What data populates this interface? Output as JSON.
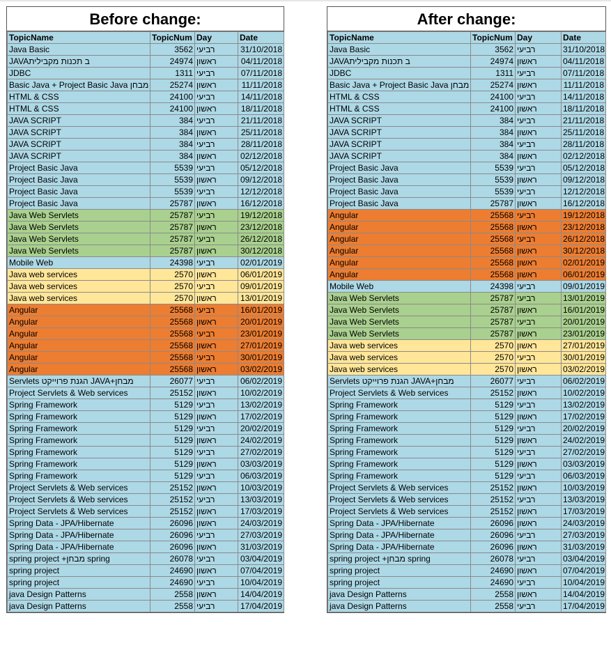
{
  "sheets": [
    {
      "id": "before",
      "title": "Before change:",
      "headers": [
        "TopicName",
        "TopicNum",
        "Day",
        "Date"
      ],
      "colors": {
        "blue": "#add8e6",
        "green": "#a9d08e",
        "yellow": "#ffe699",
        "orange": "#ed7d31"
      },
      "rows": [
        [
          "Java Basic",
          "3562",
          "רביעי",
          "31/10/2018",
          "blue"
        ],
        [
          "JAVAב תכנות מקבילית",
          "24974",
          "ראשון",
          "04/11/2018",
          "blue"
        ],
        [
          "JDBC",
          "1311",
          "רביעי",
          "07/11/2018",
          "blue"
        ],
        [
          "Basic Java + Project Basic Java מבחן",
          "25274",
          "ראשון",
          "11/11/2018",
          "blue"
        ],
        [
          "HTML & CSS",
          "24100",
          "רביעי",
          "14/11/2018",
          "blue"
        ],
        [
          "HTML & CSS",
          "24100",
          "ראשון",
          "18/11/2018",
          "blue"
        ],
        [
          "JAVA SCRIPT",
          "384",
          "רביעי",
          "21/11/2018",
          "blue"
        ],
        [
          "JAVA SCRIPT",
          "384",
          "ראשון",
          "25/11/2018",
          "blue"
        ],
        [
          "JAVA SCRIPT",
          "384",
          "רביעי",
          "28/11/2018",
          "blue"
        ],
        [
          "JAVA SCRIPT",
          "384",
          "ראשון",
          "02/12/2018",
          "blue"
        ],
        [
          "Project Basic Java",
          "5539",
          "רביעי",
          "05/12/2018",
          "blue"
        ],
        [
          "Project Basic Java",
          "5539",
          "ראשון",
          "09/12/2018",
          "blue"
        ],
        [
          "Project Basic Java",
          "5539",
          "רביעי",
          "12/12/2018",
          "blue"
        ],
        [
          "Project Basic Java",
          "25787",
          "ראשון",
          "16/12/2018",
          "blue"
        ],
        [
          "Java Web Servlets",
          "25787",
          "רביעי",
          "19/12/2018",
          "green"
        ],
        [
          "Java Web Servlets",
          "25787",
          "ראשון",
          "23/12/2018",
          "green"
        ],
        [
          "Java Web Servlets",
          "25787",
          "רביעי",
          "26/12/2018",
          "green"
        ],
        [
          "Java Web Servlets",
          "25787",
          "ראשון",
          "30/12/2018",
          "green"
        ],
        [
          "Mobile Web",
          "24398",
          "רביעי",
          "02/01/2019",
          "blue"
        ],
        [
          "Java web services",
          "2570",
          "ראשון",
          "06/01/2019",
          "yellow"
        ],
        [
          "Java web services",
          "2570",
          "רביעי",
          "09/01/2019",
          "yellow"
        ],
        [
          "Java web services",
          "2570",
          "ראשון",
          "13/01/2019",
          "yellow"
        ],
        [
          "Angular",
          "25568",
          "רביעי",
          "16/01/2019",
          "orange"
        ],
        [
          "Angular",
          "25568",
          "ראשון",
          "20/01/2019",
          "orange"
        ],
        [
          "Angular",
          "25568",
          "רביעי",
          "23/01/2019",
          "orange"
        ],
        [
          "Angular",
          "25568",
          "ראשון",
          "27/01/2019",
          "orange"
        ],
        [
          "Angular",
          "25568",
          "רביעי",
          "30/01/2019",
          "orange"
        ],
        [
          "Angular",
          "25568",
          "ראשון",
          "03/02/2019",
          "orange"
        ],
        [
          "Servlets הגנת פרוייקט JAVA+מבחן",
          "26077",
          "רביעי",
          "06/02/2019",
          "blue"
        ],
        [
          "Project Servlets & Web services",
          "25152",
          "ראשון",
          "10/02/2019",
          "blue"
        ],
        [
          "Spring Framework",
          "5129",
          "רביעי",
          "13/02/2019",
          "blue"
        ],
        [
          "Spring Framework",
          "5129",
          "ראשון",
          "17/02/2019",
          "blue"
        ],
        [
          "Spring Framework",
          "5129",
          "רביעי",
          "20/02/2019",
          "blue"
        ],
        [
          "Spring Framework",
          "5129",
          "ראשון",
          "24/02/2019",
          "blue"
        ],
        [
          "Spring Framework",
          "5129",
          "רביעי",
          "27/02/2019",
          "blue"
        ],
        [
          "Spring Framework",
          "5129",
          "ראשון",
          "03/03/2019",
          "blue"
        ],
        [
          "Spring Framework",
          "5129",
          "רביעי",
          "06/03/2019",
          "blue"
        ],
        [
          "Project Servlets & Web services",
          "25152",
          "ראשון",
          "10/03/2019",
          "blue"
        ],
        [
          "Project Servlets & Web services",
          "25152",
          "רביעי",
          "13/03/2019",
          "blue"
        ],
        [
          "Project Servlets & Web services",
          "25152",
          "ראשון",
          "17/03/2019",
          "blue"
        ],
        [
          "Spring Data - JPA/Hibernate",
          "26096",
          "ראשון",
          "24/03/2019",
          "blue"
        ],
        [
          "Spring Data - JPA/Hibernate",
          "26096",
          "רביעי",
          "27/03/2019",
          "blue"
        ],
        [
          "Spring Data - JPA/Hibernate",
          "26096",
          "ראשון",
          "31/03/2019",
          "blue"
        ],
        [
          "spring project +מבחן spring",
          "26078",
          "רביעי",
          "03/04/2019",
          "blue"
        ],
        [
          "spring project",
          "24690",
          "ראשון",
          "07/04/2019",
          "blue"
        ],
        [
          "spring project",
          "24690",
          "רביעי",
          "10/04/2019",
          "blue"
        ],
        [
          "java Design Patterns",
          "2558",
          "ראשון",
          "14/04/2019",
          "blue"
        ],
        [
          "java Design Patterns",
          "2558",
          "רביעי",
          "17/04/2019",
          "blue"
        ]
      ]
    },
    {
      "id": "after",
      "title": "After change:",
      "headers": [
        "TopicName",
        "TopicNum",
        "Day",
        "Date"
      ],
      "colors": {
        "blue": "#add8e6",
        "green": "#a9d08e",
        "yellow": "#ffe699",
        "orange": "#ed7d31"
      },
      "rows": [
        [
          "Java Basic",
          "3562",
          "רביעי",
          "31/10/2018",
          "blue"
        ],
        [
          "JAVAב תכנות מקבילית",
          "24974",
          "ראשון",
          "04/11/2018",
          "blue"
        ],
        [
          "JDBC",
          "1311",
          "רביעי",
          "07/11/2018",
          "blue"
        ],
        [
          "Basic Java + Project Basic Java מבחן",
          "25274",
          "ראשון",
          "11/11/2018",
          "blue"
        ],
        [
          "HTML & CSS",
          "24100",
          "רביעי",
          "14/11/2018",
          "blue"
        ],
        [
          "HTML & CSS",
          "24100",
          "ראשון",
          "18/11/2018",
          "blue"
        ],
        [
          "JAVA SCRIPT",
          "384",
          "רביעי",
          "21/11/2018",
          "blue"
        ],
        [
          "JAVA SCRIPT",
          "384",
          "ראשון",
          "25/11/2018",
          "blue"
        ],
        [
          "JAVA SCRIPT",
          "384",
          "רביעי",
          "28/11/2018",
          "blue"
        ],
        [
          "JAVA SCRIPT",
          "384",
          "ראשון",
          "02/12/2018",
          "blue"
        ],
        [
          "Project Basic Java",
          "5539",
          "רביעי",
          "05/12/2018",
          "blue"
        ],
        [
          "Project Basic Java",
          "5539",
          "ראשון",
          "09/12/2018",
          "blue"
        ],
        [
          "Project Basic Java",
          "5539",
          "רביעי",
          "12/12/2018",
          "blue"
        ],
        [
          "Project Basic Java",
          "25787",
          "ראשון",
          "16/12/2018",
          "blue"
        ],
        [
          "Angular",
          "25568",
          "רביעי",
          "19/12/2018",
          "orange"
        ],
        [
          "Angular",
          "25568",
          "ראשון",
          "23/12/2018",
          "orange"
        ],
        [
          "Angular",
          "25568",
          "רביעי",
          "26/12/2018",
          "orange"
        ],
        [
          "Angular",
          "25568",
          "ראשון",
          "30/12/2018",
          "orange"
        ],
        [
          "Angular",
          "25568",
          "ראשון",
          "02/01/2019",
          "orange"
        ],
        [
          "Angular",
          "25568",
          "ראשון",
          "06/01/2019",
          "orange"
        ],
        [
          "Mobile Web",
          "24398",
          "רביעי",
          "09/01/2019",
          "blue"
        ],
        [
          "Java Web Servlets",
          "25787",
          "רביעי",
          "13/01/2019",
          "green"
        ],
        [
          "Java Web Servlets",
          "25787",
          "ראשון",
          "16/01/2019",
          "green"
        ],
        [
          "Java Web Servlets",
          "25787",
          "רביעי",
          "20/01/2019",
          "green"
        ],
        [
          "Java Web Servlets",
          "25787",
          "ראשון",
          "23/01/2019",
          "green"
        ],
        [
          "Java web services",
          "2570",
          "ראשון",
          "27/01/2019",
          "yellow"
        ],
        [
          "Java web services",
          "2570",
          "רביעי",
          "30/01/2019",
          "yellow"
        ],
        [
          "Java web services",
          "2570",
          "ראשון",
          "03/02/2019",
          "yellow"
        ],
        [
          "Servlets הגנת פרוייקט JAVA+מבחן",
          "26077",
          "רביעי",
          "06/02/2019",
          "blue"
        ],
        [
          "Project Servlets & Web services",
          "25152",
          "ראשון",
          "10/02/2019",
          "blue"
        ],
        [
          "Spring Framework",
          "5129",
          "רביעי",
          "13/02/2019",
          "blue"
        ],
        [
          "Spring Framework",
          "5129",
          "ראשון",
          "17/02/2019",
          "blue"
        ],
        [
          "Spring Framework",
          "5129",
          "רביעי",
          "20/02/2019",
          "blue"
        ],
        [
          "Spring Framework",
          "5129",
          "ראשון",
          "24/02/2019",
          "blue"
        ],
        [
          "Spring Framework",
          "5129",
          "רביעי",
          "27/02/2019",
          "blue"
        ],
        [
          "Spring Framework",
          "5129",
          "ראשון",
          "03/03/2019",
          "blue"
        ],
        [
          "Spring Framework",
          "5129",
          "רביעי",
          "06/03/2019",
          "blue"
        ],
        [
          "Project Servlets & Web services",
          "25152",
          "ראשון",
          "10/03/2019",
          "blue"
        ],
        [
          "Project Servlets & Web services",
          "25152",
          "רביעי",
          "13/03/2019",
          "blue"
        ],
        [
          "Project Servlets & Web services",
          "25152",
          "ראשון",
          "17/03/2019",
          "blue"
        ],
        [
          "Spring Data - JPA/Hibernate",
          "26096",
          "ראשון",
          "24/03/2019",
          "blue"
        ],
        [
          "Spring Data - JPA/Hibernate",
          "26096",
          "רביעי",
          "27/03/2019",
          "blue"
        ],
        [
          "Spring Data - JPA/Hibernate",
          "26096",
          "ראשון",
          "31/03/2019",
          "blue"
        ],
        [
          "spring project +מבחן spring",
          "26078",
          "רביעי",
          "03/04/2019",
          "blue"
        ],
        [
          "spring project",
          "24690",
          "ראשון",
          "07/04/2019",
          "blue"
        ],
        [
          "spring project",
          "24690",
          "רביעי",
          "10/04/2019",
          "blue"
        ],
        [
          "java Design Patterns",
          "2558",
          "ראשון",
          "14/04/2019",
          "blue"
        ],
        [
          "java Design Patterns",
          "2558",
          "רביעי",
          "17/04/2019",
          "blue"
        ]
      ]
    }
  ]
}
